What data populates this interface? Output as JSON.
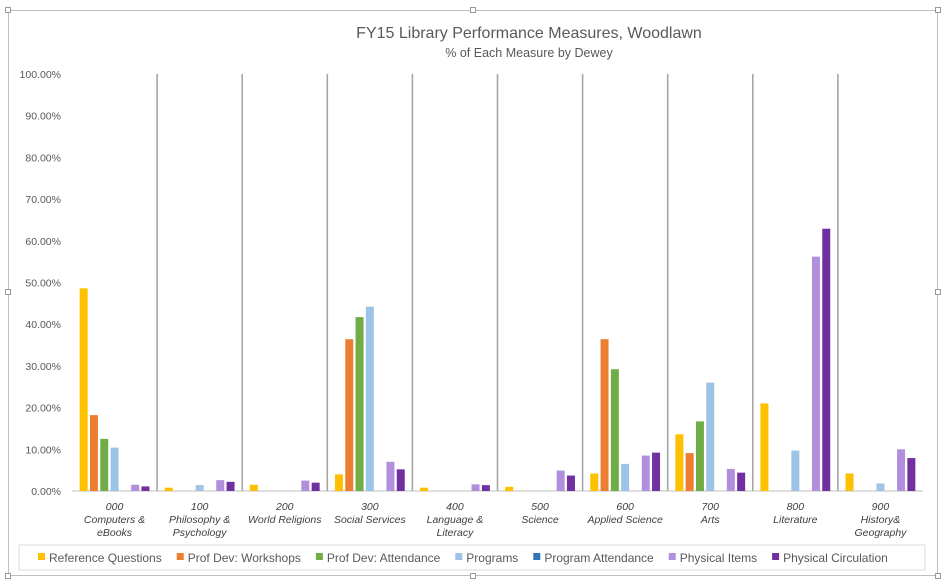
{
  "chart_data": {
    "type": "bar",
    "title": "FY15 Library Performance Measures, Woodlawn",
    "subtitle": "% of Each Measure by Dewey",
    "ylim": [
      0,
      100
    ],
    "y_ticks": [
      "0.00%",
      "10.00%",
      "20.00%",
      "30.00%",
      "40.00%",
      "50.00%",
      "60.00%",
      "70.00%",
      "80.00%",
      "90.00%",
      "100.00%"
    ],
    "categories": [
      [
        "000",
        "Computers &",
        "eBooks"
      ],
      [
        "100",
        "Philosophy &",
        "Psychology"
      ],
      [
        "200",
        "World Religions"
      ],
      [
        "300",
        "Social Services"
      ],
      [
        "400",
        "Language &",
        "Literacy"
      ],
      [
        "500",
        "Science"
      ],
      [
        "600",
        "Applied Science"
      ],
      [
        "700",
        "Arts"
      ],
      [
        "800",
        "Literature"
      ],
      [
        "900",
        "History&",
        "Geography"
      ]
    ],
    "series": [
      {
        "name": "Reference Questions",
        "color": "#FFC000",
        "values": [
          48.6,
          0.8,
          1.5,
          4.0,
          0.8,
          1.0,
          4.2,
          13.6,
          21.0,
          4.2
        ]
      },
      {
        "name": "Prof Dev: Workshops",
        "color": "#ED7D31",
        "values": [
          18.2,
          0,
          0,
          36.4,
          0,
          0,
          36.4,
          9.1,
          0,
          0
        ]
      },
      {
        "name": "Prof Dev: Attendance",
        "color": "#70AD47",
        "values": [
          12.5,
          0,
          0,
          41.7,
          0,
          0,
          29.2,
          16.7,
          0,
          0
        ]
      },
      {
        "name": "Programs",
        "color": "#9DC3E6",
        "values": [
          10.4,
          1.4,
          0,
          44.2,
          0,
          0,
          6.5,
          26.0,
          9.7,
          1.8
        ]
      },
      {
        "name": "Program Attendance",
        "color": "#2E75B6",
        "values": [
          0,
          0,
          0,
          0,
          0,
          0,
          0,
          0,
          0,
          0
        ]
      },
      {
        "name": "Physical Items",
        "color": "#B18FDC",
        "values": [
          1.5,
          2.6,
          2.5,
          7.0,
          1.6,
          4.9,
          8.5,
          5.3,
          56.2,
          10.0
        ]
      },
      {
        "name": "Physical Circulation",
        "color": "#7030A0",
        "values": [
          1.1,
          2.2,
          2.0,
          5.2,
          1.4,
          3.7,
          9.2,
          4.4,
          62.9,
          7.9
        ]
      }
    ],
    "grid": false,
    "category_separators": true,
    "legend_position": "bottom"
  }
}
